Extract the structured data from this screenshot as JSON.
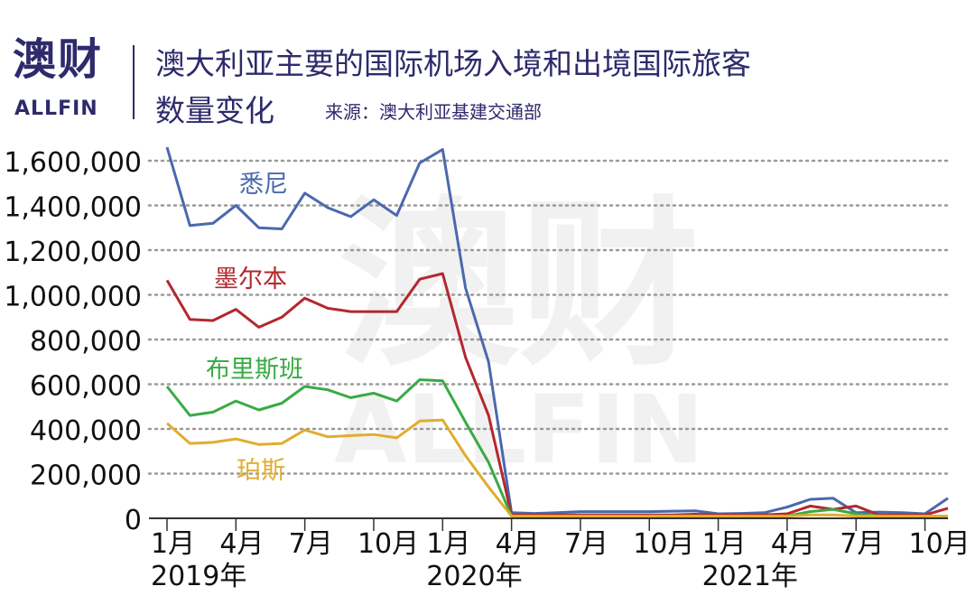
{
  "header": {
    "logo_cn": "澳财",
    "logo_en": "ALLFIN",
    "title_line1": "澳大利亚主要的国际机场入境和出境国际旅客",
    "title_line2": "数量变化",
    "source": "来源：澳大利亚基建交通部"
  },
  "watermark": {
    "cn": "澳财",
    "en": "ALLFIN"
  },
  "colors": {
    "sydney": "#4a69ad",
    "melbourne": "#b3282e",
    "brisbane": "#3aaa45",
    "perth": "#e0ad2e",
    "text": "#111111",
    "grid": "#9a9a9a",
    "brand": "#2e2a6b"
  },
  "chart_data": {
    "type": "line",
    "x": [
      "2019-01",
      "2019-02",
      "2019-03",
      "2019-04",
      "2019-05",
      "2019-06",
      "2019-07",
      "2019-08",
      "2019-09",
      "2019-10",
      "2019-11",
      "2019-12",
      "2020-01",
      "2020-02",
      "2020-03",
      "2020-04",
      "2020-05",
      "2020-06",
      "2020-07",
      "2020-08",
      "2020-09",
      "2020-10",
      "2020-11",
      "2020-12",
      "2021-01",
      "2021-02",
      "2021-03",
      "2021-04",
      "2021-05",
      "2021-06",
      "2021-07",
      "2021-08",
      "2021-09",
      "2021-10",
      "2021-11"
    ],
    "x_tick_labels": [
      {
        "index": 0,
        "label": "1月"
      },
      {
        "index": 3,
        "label": "4月"
      },
      {
        "index": 6,
        "label": "7月"
      },
      {
        "index": 9,
        "label": "10月"
      },
      {
        "index": 12,
        "label": "1月"
      },
      {
        "index": 15,
        "label": "4月"
      },
      {
        "index": 18,
        "label": "7月"
      },
      {
        "index": 21,
        "label": "10月"
      },
      {
        "index": 24,
        "label": "1月"
      },
      {
        "index": 27,
        "label": "4月"
      },
      {
        "index": 30,
        "label": "7月"
      },
      {
        "index": 33,
        "label": "10月"
      }
    ],
    "year_labels": [
      {
        "index": 0,
        "label": "2019年"
      },
      {
        "index": 12,
        "label": "2020年"
      },
      {
        "index": 24,
        "label": "2021年"
      }
    ],
    "ylim": [
      0,
      1600000
    ],
    "y_ticks": [
      0,
      200000,
      400000,
      600000,
      800000,
      1000000,
      1200000,
      1400000,
      1600000
    ],
    "y_tick_labels": [
      "0",
      "200,000",
      "400,000",
      "600,000",
      "800,000",
      "1,000,000",
      "1,200,000",
      "1,400,000",
      "1,600,000"
    ],
    "grid": "horizontal dotted",
    "series": [
      {
        "name": "悉尼",
        "key": "sydney",
        "values": [
          1660000,
          1310000,
          1320000,
          1400000,
          1300000,
          1295000,
          1455000,
          1390000,
          1350000,
          1425000,
          1355000,
          1590000,
          1650000,
          1030000,
          700000,
          25000,
          22000,
          25000,
          30000,
          30000,
          30000,
          30000,
          32000,
          33000,
          20000,
          22000,
          25000,
          50000,
          85000,
          90000,
          25000,
          28000,
          25000,
          20000,
          90000
        ]
      },
      {
        "name": "墨尔本",
        "key": "melbourne",
        "values": [
          1065000,
          890000,
          885000,
          935000,
          855000,
          900000,
          985000,
          940000,
          925000,
          925000,
          925000,
          1070000,
          1095000,
          720000,
          460000,
          15000,
          15000,
          15000,
          15000,
          15000,
          15000,
          15000,
          15000,
          18000,
          15000,
          15000,
          15000,
          20000,
          55000,
          40000,
          55000,
          15000,
          15000,
          15000,
          45000
        ]
      },
      {
        "name": "布里斯班",
        "key": "brisbane",
        "values": [
          590000,
          460000,
          475000,
          525000,
          485000,
          515000,
          590000,
          575000,
          540000,
          560000,
          525000,
          620000,
          615000,
          430000,
          250000,
          10000,
          10000,
          10000,
          10000,
          10000,
          10000,
          10000,
          10000,
          10000,
          10000,
          10000,
          10000,
          10000,
          30000,
          40000,
          20000,
          10000,
          10000,
          10000,
          10000
        ]
      },
      {
        "name": "珀斯",
        "key": "perth",
        "values": [
          425000,
          335000,
          340000,
          355000,
          330000,
          335000,
          395000,
          365000,
          370000,
          375000,
          360000,
          435000,
          440000,
          280000,
          140000,
          10000,
          10000,
          10000,
          10000,
          10000,
          10000,
          10000,
          10000,
          10000,
          10000,
          10000,
          10000,
          10000,
          15000,
          15000,
          10000,
          10000,
          10000,
          10000,
          10000
        ]
      }
    ]
  }
}
